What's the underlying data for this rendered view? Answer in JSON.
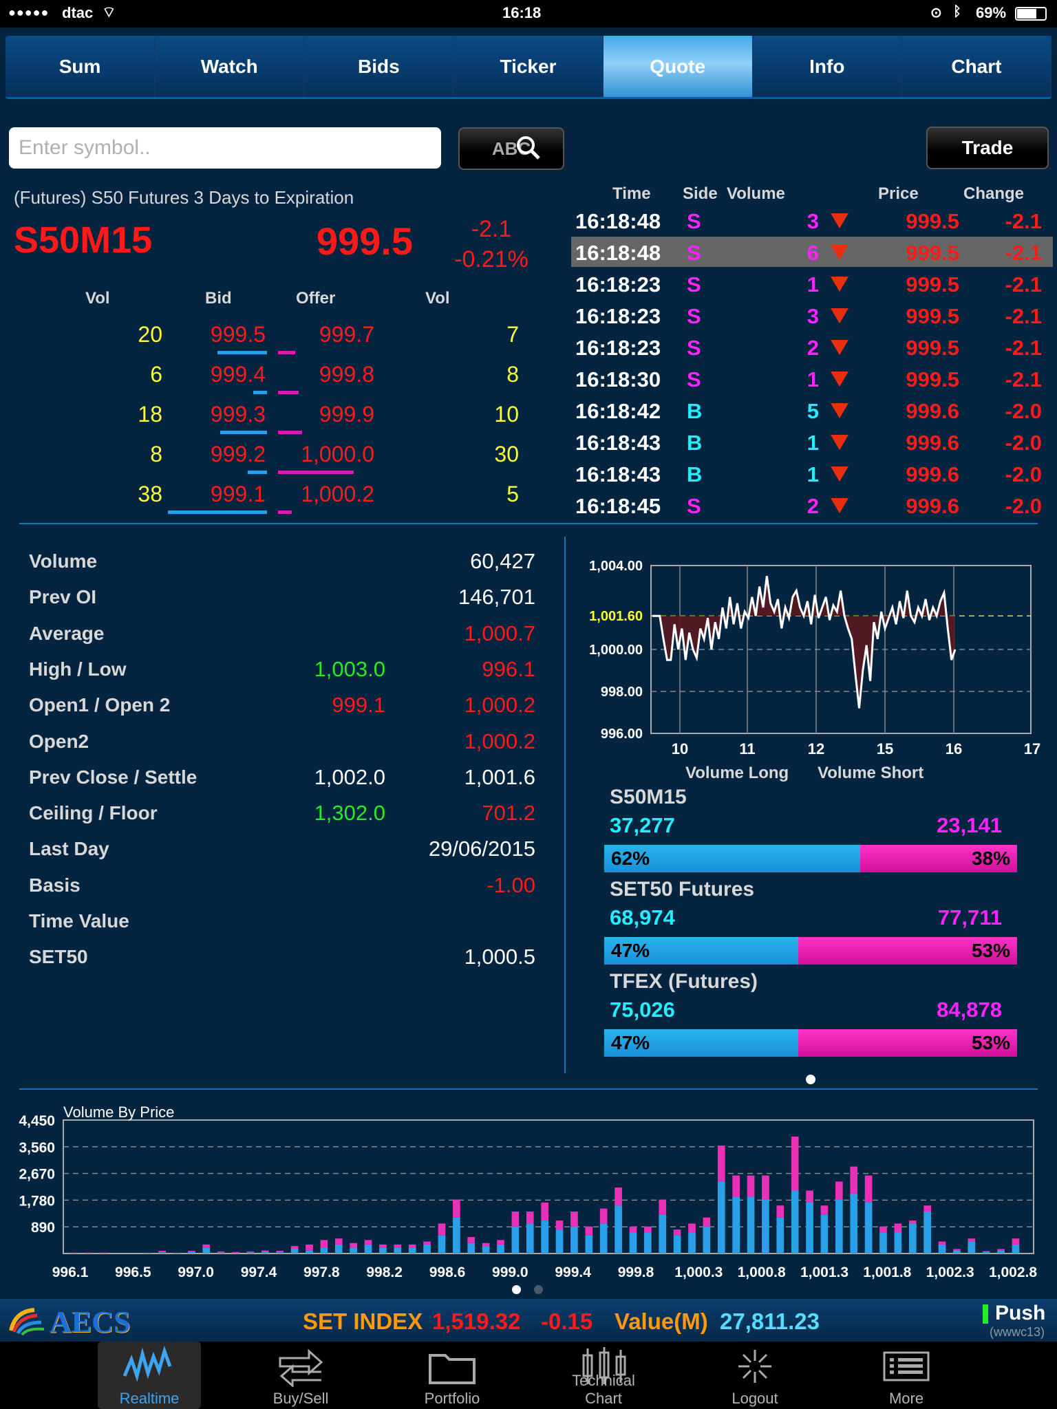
{
  "status": {
    "carrier": "dtac",
    "time": "16:18",
    "battery": "69%"
  },
  "tabs": [
    "Sum",
    "Watch",
    "Bids",
    "Ticker",
    "Quote",
    "Info",
    "Chart"
  ],
  "active_tab": "Quote",
  "search": {
    "placeholder": "Enter symbol..",
    "button": "ABC",
    "trade": "Trade"
  },
  "quote": {
    "description": "(Futures) S50 Futures 3 Days to Expiration",
    "symbol": "S50M15",
    "last": "999.5",
    "change": "-2.1",
    "change_pct": "-0.21%"
  },
  "orderbook": {
    "headers": [
      "Vol",
      "Bid",
      "Offer",
      "Vol"
    ],
    "rows": [
      {
        "bid_vol": "20",
        "bid": "999.5",
        "offer": "999.7",
        "offer_vol": "7",
        "bid_bar": 0.18,
        "offer_bar": 0.05
      },
      {
        "bid_vol": "6",
        "bid": "999.4",
        "offer": "999.8",
        "offer_vol": "8",
        "bid_bar": 0.05,
        "offer_bar": 0.06
      },
      {
        "bid_vol": "18",
        "bid": "999.3",
        "offer": "999.9",
        "offer_vol": "10",
        "bid_bar": 0.17,
        "offer_bar": 0.07
      },
      {
        "bid_vol": "8",
        "bid": "999.2",
        "offer": "1,000.0",
        "offer_vol": "30",
        "bid_bar": 0.07,
        "offer_bar": 0.22
      },
      {
        "bid_vol": "38",
        "bid": "999.1",
        "offer": "1,000.2",
        "offer_vol": "5",
        "bid_bar": 0.36,
        "offer_bar": 0.04
      }
    ]
  },
  "trades": {
    "headers": [
      "Time",
      "Side",
      "Volume",
      "Price",
      "Change"
    ],
    "rows": [
      {
        "time": "16:18:48",
        "side": "S",
        "vol": "3",
        "price": "999.5",
        "change": "-2.1"
      },
      {
        "time": "16:18:48",
        "side": "S",
        "vol": "6",
        "price": "999.5",
        "change": "-2.1"
      },
      {
        "time": "16:18:23",
        "side": "S",
        "vol": "1",
        "price": "999.5",
        "change": "-2.1"
      },
      {
        "time": "16:18:23",
        "side": "S",
        "vol": "3",
        "price": "999.5",
        "change": "-2.1"
      },
      {
        "time": "16:18:23",
        "side": "S",
        "vol": "2",
        "price": "999.5",
        "change": "-2.1"
      },
      {
        "time": "16:18:30",
        "side": "S",
        "vol": "1",
        "price": "999.5",
        "change": "-2.1"
      },
      {
        "time": "16:18:42",
        "side": "B",
        "vol": "5",
        "price": "999.6",
        "change": "-2.0"
      },
      {
        "time": "16:18:43",
        "side": "B",
        "vol": "1",
        "price": "999.6",
        "change": "-2.0"
      },
      {
        "time": "16:18:43",
        "side": "B",
        "vol": "1",
        "price": "999.6",
        "change": "-2.0"
      },
      {
        "time": "16:18:45",
        "side": "S",
        "vol": "2",
        "price": "999.6",
        "change": "-2.0"
      }
    ]
  },
  "stats": [
    {
      "label": "Volume",
      "v1": "",
      "v2": "60,427",
      "c1": "",
      "c2": "white"
    },
    {
      "label": "Prev OI",
      "v1": "",
      "v2": "146,701",
      "c1": "",
      "c2": "white"
    },
    {
      "label": "Average",
      "v1": "",
      "v2": "1,000.7",
      "c1": "",
      "c2": "red"
    },
    {
      "label": "High / Low",
      "v1": "1,003.0",
      "v2": "996.1",
      "c1": "green",
      "c2": "red"
    },
    {
      "label": "Open1 / Open 2",
      "v1": "999.1",
      "v2": "1,000.2",
      "c1": "red",
      "c2": "red"
    },
    {
      "label": "Open2",
      "v1": "",
      "v2": "1,000.2",
      "c1": "",
      "c2": "red"
    },
    {
      "label": "Prev Close / Settle",
      "v1": "1,002.0",
      "v2": "1,001.6",
      "c1": "white",
      "c2": "white"
    },
    {
      "label": "Ceiling / Floor",
      "v1": "1,302.0",
      "v2": "701.2",
      "c1": "green",
      "c2": "red"
    },
    {
      "label": "Last Day",
      "v1": "",
      "v2": "29/06/2015",
      "c1": "",
      "c2": "white"
    },
    {
      "label": "Basis",
      "v1": "",
      "v2": "-1.00",
      "c1": "",
      "c2": "red"
    },
    {
      "label": "Time Value",
      "v1": "",
      "v2": "",
      "c1": "",
      "c2": "white"
    },
    {
      "label": "SET50",
      "v1": "",
      "v2": "1,000.5",
      "c1": "",
      "c2": "white"
    }
  ],
  "chart_data": [
    {
      "type": "line",
      "yticks": [
        "1,004.00",
        "1,001.60",
        "1,000.00",
        "998.00",
        "996.00"
      ],
      "xticks": [
        "10",
        "11",
        "12",
        "15",
        "16",
        "17"
      ],
      "ylim": [
        996,
        1004
      ],
      "reference": 1001.6,
      "values": [
        1001.6,
        1001.6,
        1001.6,
        1000.5,
        999.5,
        999.5,
        1001.2,
        1000,
        1001,
        999.5,
        1000.8,
        1000,
        999.6,
        1001,
        1000.5,
        1001.5,
        1000,
        1001.3,
        1000.5,
        1002,
        1001,
        1002.5,
        1001.2,
        1002.2,
        1001,
        1001.8,
        1001.5,
        1002.5,
        1001.6,
        1003,
        1002,
        1003.5,
        1002.2,
        1001.8,
        1002.4,
        1001,
        1002,
        1001.5,
        1002.5,
        1002.8,
        1002,
        1001.6,
        1002.3,
        1001.2,
        1002.6,
        1001.5,
        1002,
        1002.5,
        1001.4,
        1002.1,
        1001.8,
        1002.8,
        1001.6,
        1001,
        1000.5,
        998.8,
        997.2,
        999,
        1000.2,
        998.5,
        1001.3,
        1000.5,
        1001.8,
        1001,
        1001.5,
        1002,
        1001.2,
        1002.3,
        1001.5,
        1002.8,
        1001.6,
        1001.3,
        1002,
        1001.6,
        1002.4,
        1001.4,
        1002,
        1001.6,
        1002.3,
        1002.7,
        1001,
        999.5,
        1000
      ]
    },
    {
      "type": "bar",
      "title": "Volume By Price",
      "yticks": [
        "4,450",
        "3,560",
        "2,670",
        "1,780",
        "890"
      ],
      "ylim": [
        0,
        4450
      ],
      "xticks": [
        "996.1",
        "996.5",
        "997.0",
        "997.4",
        "997.8",
        "998.2",
        "998.6",
        "999.0",
        "999.4",
        "999.8",
        "1,000.3",
        "1,000.8",
        "1,001.3",
        "1,001.8",
        "1,002.3",
        "1,002.8"
      ],
      "series": [
        {
          "values": [
            20,
            20,
            20,
            0,
            0,
            15,
            40,
            15,
            60,
            200,
            30,
            20,
            40,
            60,
            40,
            150,
            100,
            200,
            300,
            200,
            300,
            200,
            200,
            200,
            300,
            600,
            1200,
            350,
            250,
            300,
            900,
            1000,
            1100,
            800,
            900,
            600,
            1000,
            1600,
            700,
            700,
            1300,
            600,
            700,
            900,
            2400,
            1900,
            1900,
            1800,
            1200,
            2100,
            1700,
            1300,
            1800,
            2000,
            1700,
            700,
            700,
            1000,
            1400,
            300,
            100,
            400,
            50,
            100,
            300
          ],
          "extra": [
            10,
            10,
            10,
            0,
            0,
            10,
            50,
            10,
            30,
            100,
            40,
            30,
            30,
            40,
            50,
            100,
            200,
            250,
            200,
            150,
            150,
            100,
            100,
            100,
            100,
            400,
            600,
            200,
            100,
            150,
            500,
            400,
            600,
            300,
            500,
            300,
            500,
            600,
            200,
            200,
            500,
            200,
            300,
            300,
            1200,
            700,
            700,
            800,
            400,
            1800,
            400,
            300,
            600,
            900,
            900,
            200,
            300,
            100,
            200,
            100,
            50,
            100,
            30,
            50,
            200
          ]
        }
      ]
    }
  ],
  "sentiment": {
    "legend_long": "Volume Long",
    "legend_short": "Volume Short",
    "groups": [
      {
        "name": "S50M15",
        "long": "37,277",
        "short": "23,141",
        "long_pct": "62%",
        "short_pct": "38%",
        "frac": 0.62
      },
      {
        "name": "SET50 Futures",
        "long": "68,974",
        "short": "77,711",
        "long_pct": "47%",
        "short_pct": "53%",
        "frac": 0.47
      },
      {
        "name": "TFEX (Futures)",
        "long": "75,026",
        "short": "84,878",
        "long_pct": "47%",
        "short_pct": "53%",
        "frac": 0.47
      }
    ]
  },
  "infobar": {
    "logo": "AECS",
    "index_label": "SET INDEX",
    "index": "1,519.32",
    "index_change": "-0.15",
    "value_label": "Value(M)",
    "value": "27,811.23",
    "push": "Push",
    "server": "(wwwc13)"
  },
  "nav": [
    "Realtime",
    "Buy/Sell",
    "Portfolio",
    "Technical Chart",
    "Logout",
    "More"
  ]
}
